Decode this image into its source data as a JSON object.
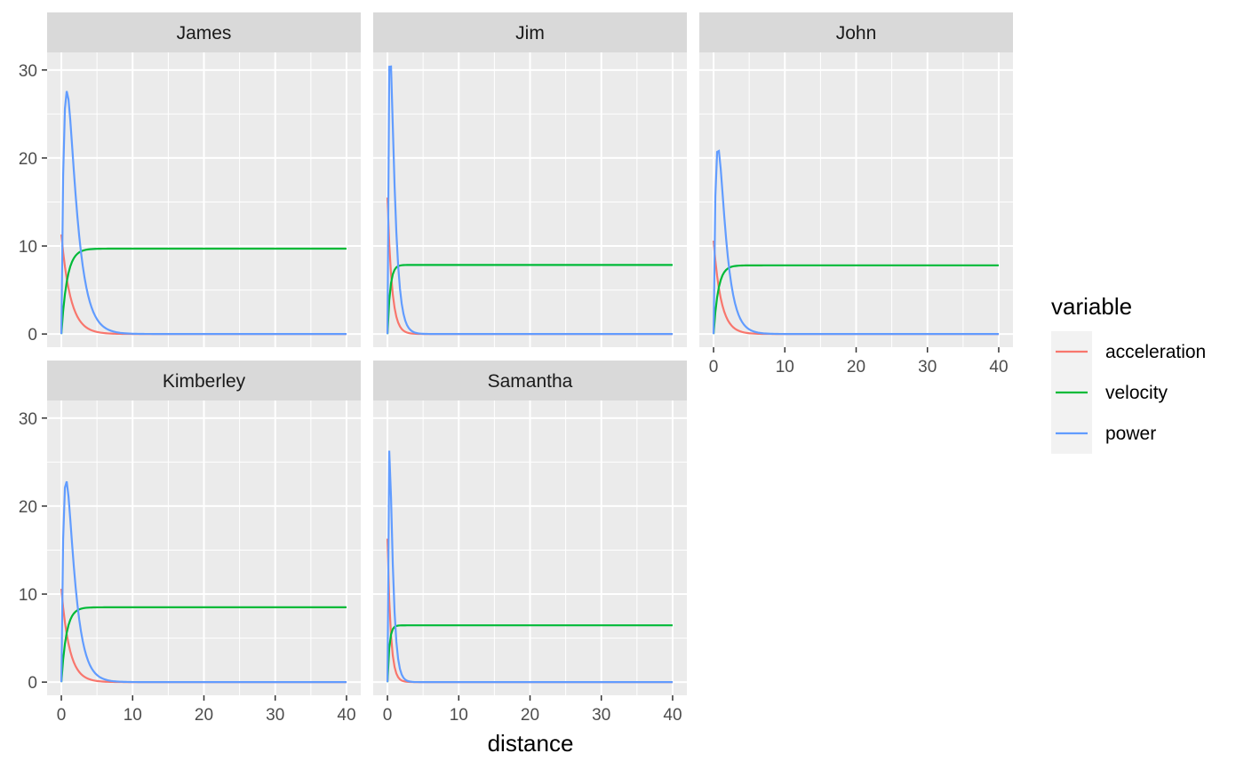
{
  "chart_data": {
    "type": "line",
    "xlabel": "distance",
    "ylabel": "",
    "xlim": [
      -2,
      42
    ],
    "ylim": [
      -1.5,
      32
    ],
    "x_ticks": [
      0,
      10,
      20,
      30,
      40
    ],
    "y_ticks": [
      0,
      10,
      20,
      30
    ],
    "grid": true,
    "legend": {
      "title": "variable",
      "position": "right",
      "entries": [
        {
          "name": "acceleration",
          "color": "#F8766D"
        },
        {
          "name": "velocity",
          "color": "#00BA38"
        },
        {
          "name": "power",
          "color": "#619CFF"
        }
      ]
    },
    "panels": [
      {
        "label": "James",
        "accel0": 11.3,
        "vmax": 9.7,
        "pmax": 27.6,
        "x_pmax": 1.6
      },
      {
        "label": "Jim",
        "accel0": 15.5,
        "vmax": 7.85,
        "pmax": 30.4,
        "x_pmax": 0.75
      },
      {
        "label": "John",
        "accel0": 10.6,
        "vmax": 7.8,
        "pmax": 20.8,
        "x_pmax": 1.3
      },
      {
        "label": "Kimberley",
        "accel0": 10.6,
        "vmax": 8.5,
        "pmax": 22.8,
        "x_pmax": 1.4
      },
      {
        "label": "Samantha",
        "accel0": 16.3,
        "vmax": 6.45,
        "pmax": 26.3,
        "x_pmax": 0.55
      }
    ],
    "x_axis_panels": [
      "Kimberley",
      "Samantha",
      "John"
    ],
    "y_axis_panels": [
      "James",
      "Kimberley"
    ]
  }
}
